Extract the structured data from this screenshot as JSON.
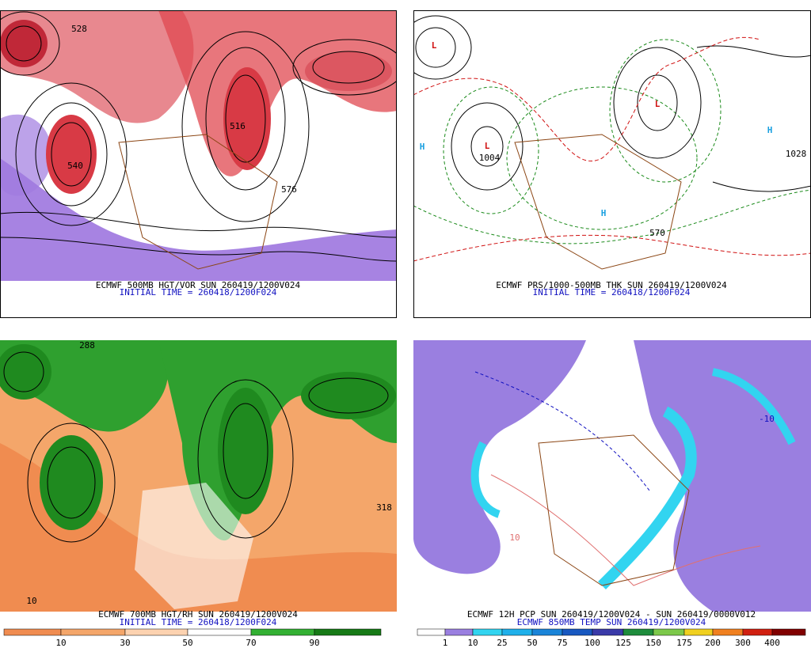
{
  "panels": [
    {
      "caption": "ECMWF 500MB HGT/VOR SUN 260419/1200V024",
      "init": "INITIAL TIME = 260418/1200F024",
      "labels": [
        "528",
        "540",
        "516",
        "576"
      ]
    },
    {
      "caption": "ECMWF PRS/1000-500MB THK SUN 260419/1200V024",
      "init": "INITIAL TIME = 260418/1200F024",
      "labels": [
        "L",
        "L",
        "L",
        "H",
        "H",
        "H",
        "1028",
        "1004",
        "570"
      ]
    },
    {
      "caption": "ECMWF 700MB HGT/RH SUN 260419/1200V024",
      "init": "INITIAL TIME = 260418/1200F024",
      "labels": [
        "288",
        "318",
        "10"
      ]
    },
    {
      "caption": "ECMWF 12H PCP SUN 260419/1200V024 - SUN 260419/0000V012",
      "init": "ECMWF 850MB TEMP SUN 260419/1200V024",
      "labels": [
        "-10",
        "10"
      ]
    }
  ],
  "colorbars": [
    {
      "labels": [
        "10",
        "30",
        "50",
        "70",
        "90"
      ],
      "colors": [
        "#f08c50",
        "#f4a66a",
        "#fcd2b0",
        "#ffffff",
        "#33b033",
        "#177a17"
      ]
    },
    {
      "labels": [
        "1",
        "10",
        "25",
        "50",
        "75",
        "100",
        "125",
        "150",
        "175",
        "200",
        "300",
        "400"
      ],
      "colors": [
        "#ffffff",
        "#9a7fe0",
        "#32d4f0",
        "#1fb0ea",
        "#1a84d8",
        "#1858c0",
        "#3a3aa8",
        "#1e8c3c",
        "#7cc84a",
        "#f0d020",
        "#f08020",
        "#d02010",
        "#800000",
        "#a89090"
      ]
    }
  ]
}
